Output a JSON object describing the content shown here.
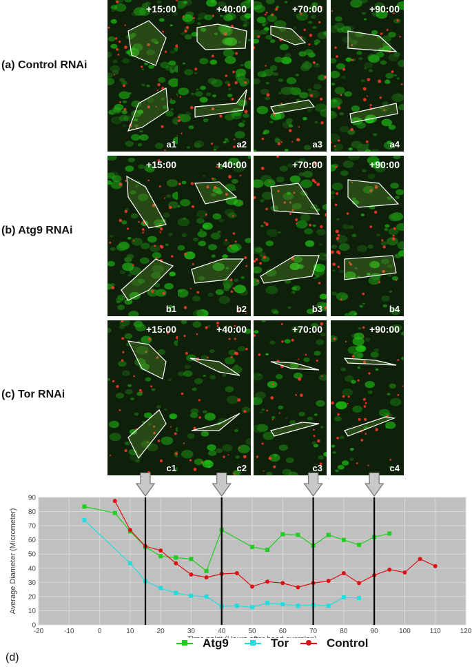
{
  "rows": [
    {
      "label": "(a) Control RNAi",
      "panels": [
        {
          "time": "+15:00",
          "id": "a1"
        },
        {
          "time": "+40:00",
          "id": "a2"
        },
        {
          "time": "+70:00",
          "id": "a3"
        },
        {
          "time": "+90:00",
          "id": "a4"
        }
      ]
    },
    {
      "label": "(b) Atg9 RNAi",
      "panels": [
        {
          "time": "+15:00",
          "id": "b1"
        },
        {
          "time": "+40:00",
          "id": "b2"
        },
        {
          "time": "+70:00",
          "id": "b3"
        },
        {
          "time": "+90:00",
          "id": "b4"
        }
      ]
    },
    {
      "label": "(c) Tor RNAi",
      "panels": [
        {
          "time": "+15:00",
          "id": "c1"
        },
        {
          "time": "+40:00",
          "id": "c2"
        },
        {
          "time": "+70:00",
          "id": "c3"
        },
        {
          "time": "+90:00",
          "id": "c4"
        }
      ]
    }
  ],
  "panel_d_label": "(d)",
  "colors": {
    "atg9": "#22cc22",
    "tor": "#22dddd",
    "control": "#dd1111",
    "plot_bg": "#c0c0c0"
  },
  "chart_data": {
    "type": "line",
    "xlabel": "Time point (Hours after head eversion)",
    "ylabel": "Average Diameter (Micrometer)",
    "xlim": [
      -20,
      120
    ],
    "ylim": [
      0,
      90
    ],
    "xticks": [
      -20,
      -10,
      0,
      10,
      20,
      30,
      40,
      50,
      60,
      70,
      80,
      90,
      100,
      110,
      120
    ],
    "yticks": [
      0,
      10,
      20,
      30,
      40,
      50,
      60,
      70,
      80,
      90
    ],
    "grid": true,
    "legend": "bottom",
    "vertical_markers": [
      15,
      40,
      70,
      90
    ],
    "series": [
      {
        "name": "Atg9",
        "color": "#22cc22",
        "marker": "square",
        "x": [
          -5,
          5,
          10,
          15,
          20,
          25,
          30,
          35,
          40,
          50,
          55,
          60,
          65,
          70,
          75,
          80,
          85,
          90,
          95
        ],
        "y": [
          83.5,
          79,
          66,
          55,
          48.5,
          47.5,
          46.5,
          38,
          67,
          55,
          53,
          64,
          63.5,
          56,
          63.5,
          60,
          56.5,
          62,
          64.5
        ]
      },
      {
        "name": "Tor",
        "color": "#22dddd",
        "marker": "square",
        "x": [
          -5,
          10,
          15,
          20,
          25,
          30,
          35,
          40,
          45,
          50,
          55,
          60,
          65,
          70,
          75,
          80,
          85
        ],
        "y": [
          74,
          43.5,
          31,
          26,
          22.5,
          20.5,
          20,
          13,
          13.5,
          12.5,
          15.5,
          14.5,
          13.5,
          14,
          13.5,
          19.5,
          19
        ]
      },
      {
        "name": "Control",
        "color": "#dd1111",
        "marker": "circle",
        "x": [
          5,
          10,
          15,
          20,
          25,
          30,
          35,
          40,
          45,
          50,
          55,
          60,
          65,
          70,
          75,
          80,
          85,
          90,
          95,
          100,
          105,
          110
        ],
        "y": [
          87.5,
          67,
          55.5,
          52.5,
          43.5,
          35.5,
          33.5,
          36,
          36.5,
          27,
          30.5,
          29.5,
          26.5,
          29.5,
          31,
          36.5,
          29.5,
          35,
          39,
          37,
          46.5,
          41.5
        ]
      }
    ]
  }
}
